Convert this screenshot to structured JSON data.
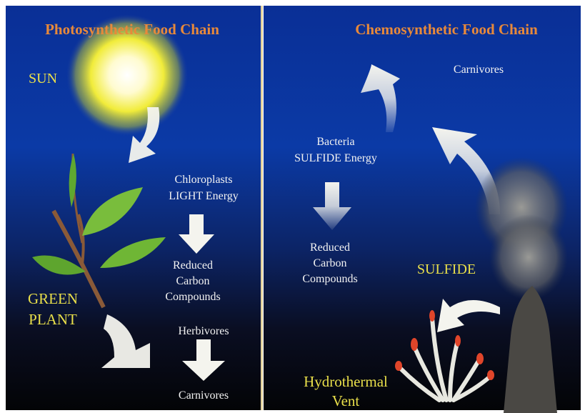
{
  "photosynthetic": {
    "title": "Photosynthetic Food Chain",
    "sun": "SUN",
    "energy": [
      "Chloroplasts",
      "LIGHT Energy"
    ],
    "compounds": [
      "Reduced",
      "Carbon",
      "Compounds"
    ],
    "plant": [
      "GREEN",
      "PLANT"
    ],
    "herbivores": "Herbivores",
    "carnivores": "Carnivores"
  },
  "chemosynthetic": {
    "title": "Chemosynthetic Food Chain",
    "carnivores": "Carnivores",
    "energy": [
      "Bacteria",
      "SULFIDE Energy"
    ],
    "compounds": [
      "Reduced",
      "Carbon",
      "Compounds"
    ],
    "sulfide": "SULFIDE",
    "vent": [
      "Hydrothermal",
      "Vent"
    ]
  }
}
